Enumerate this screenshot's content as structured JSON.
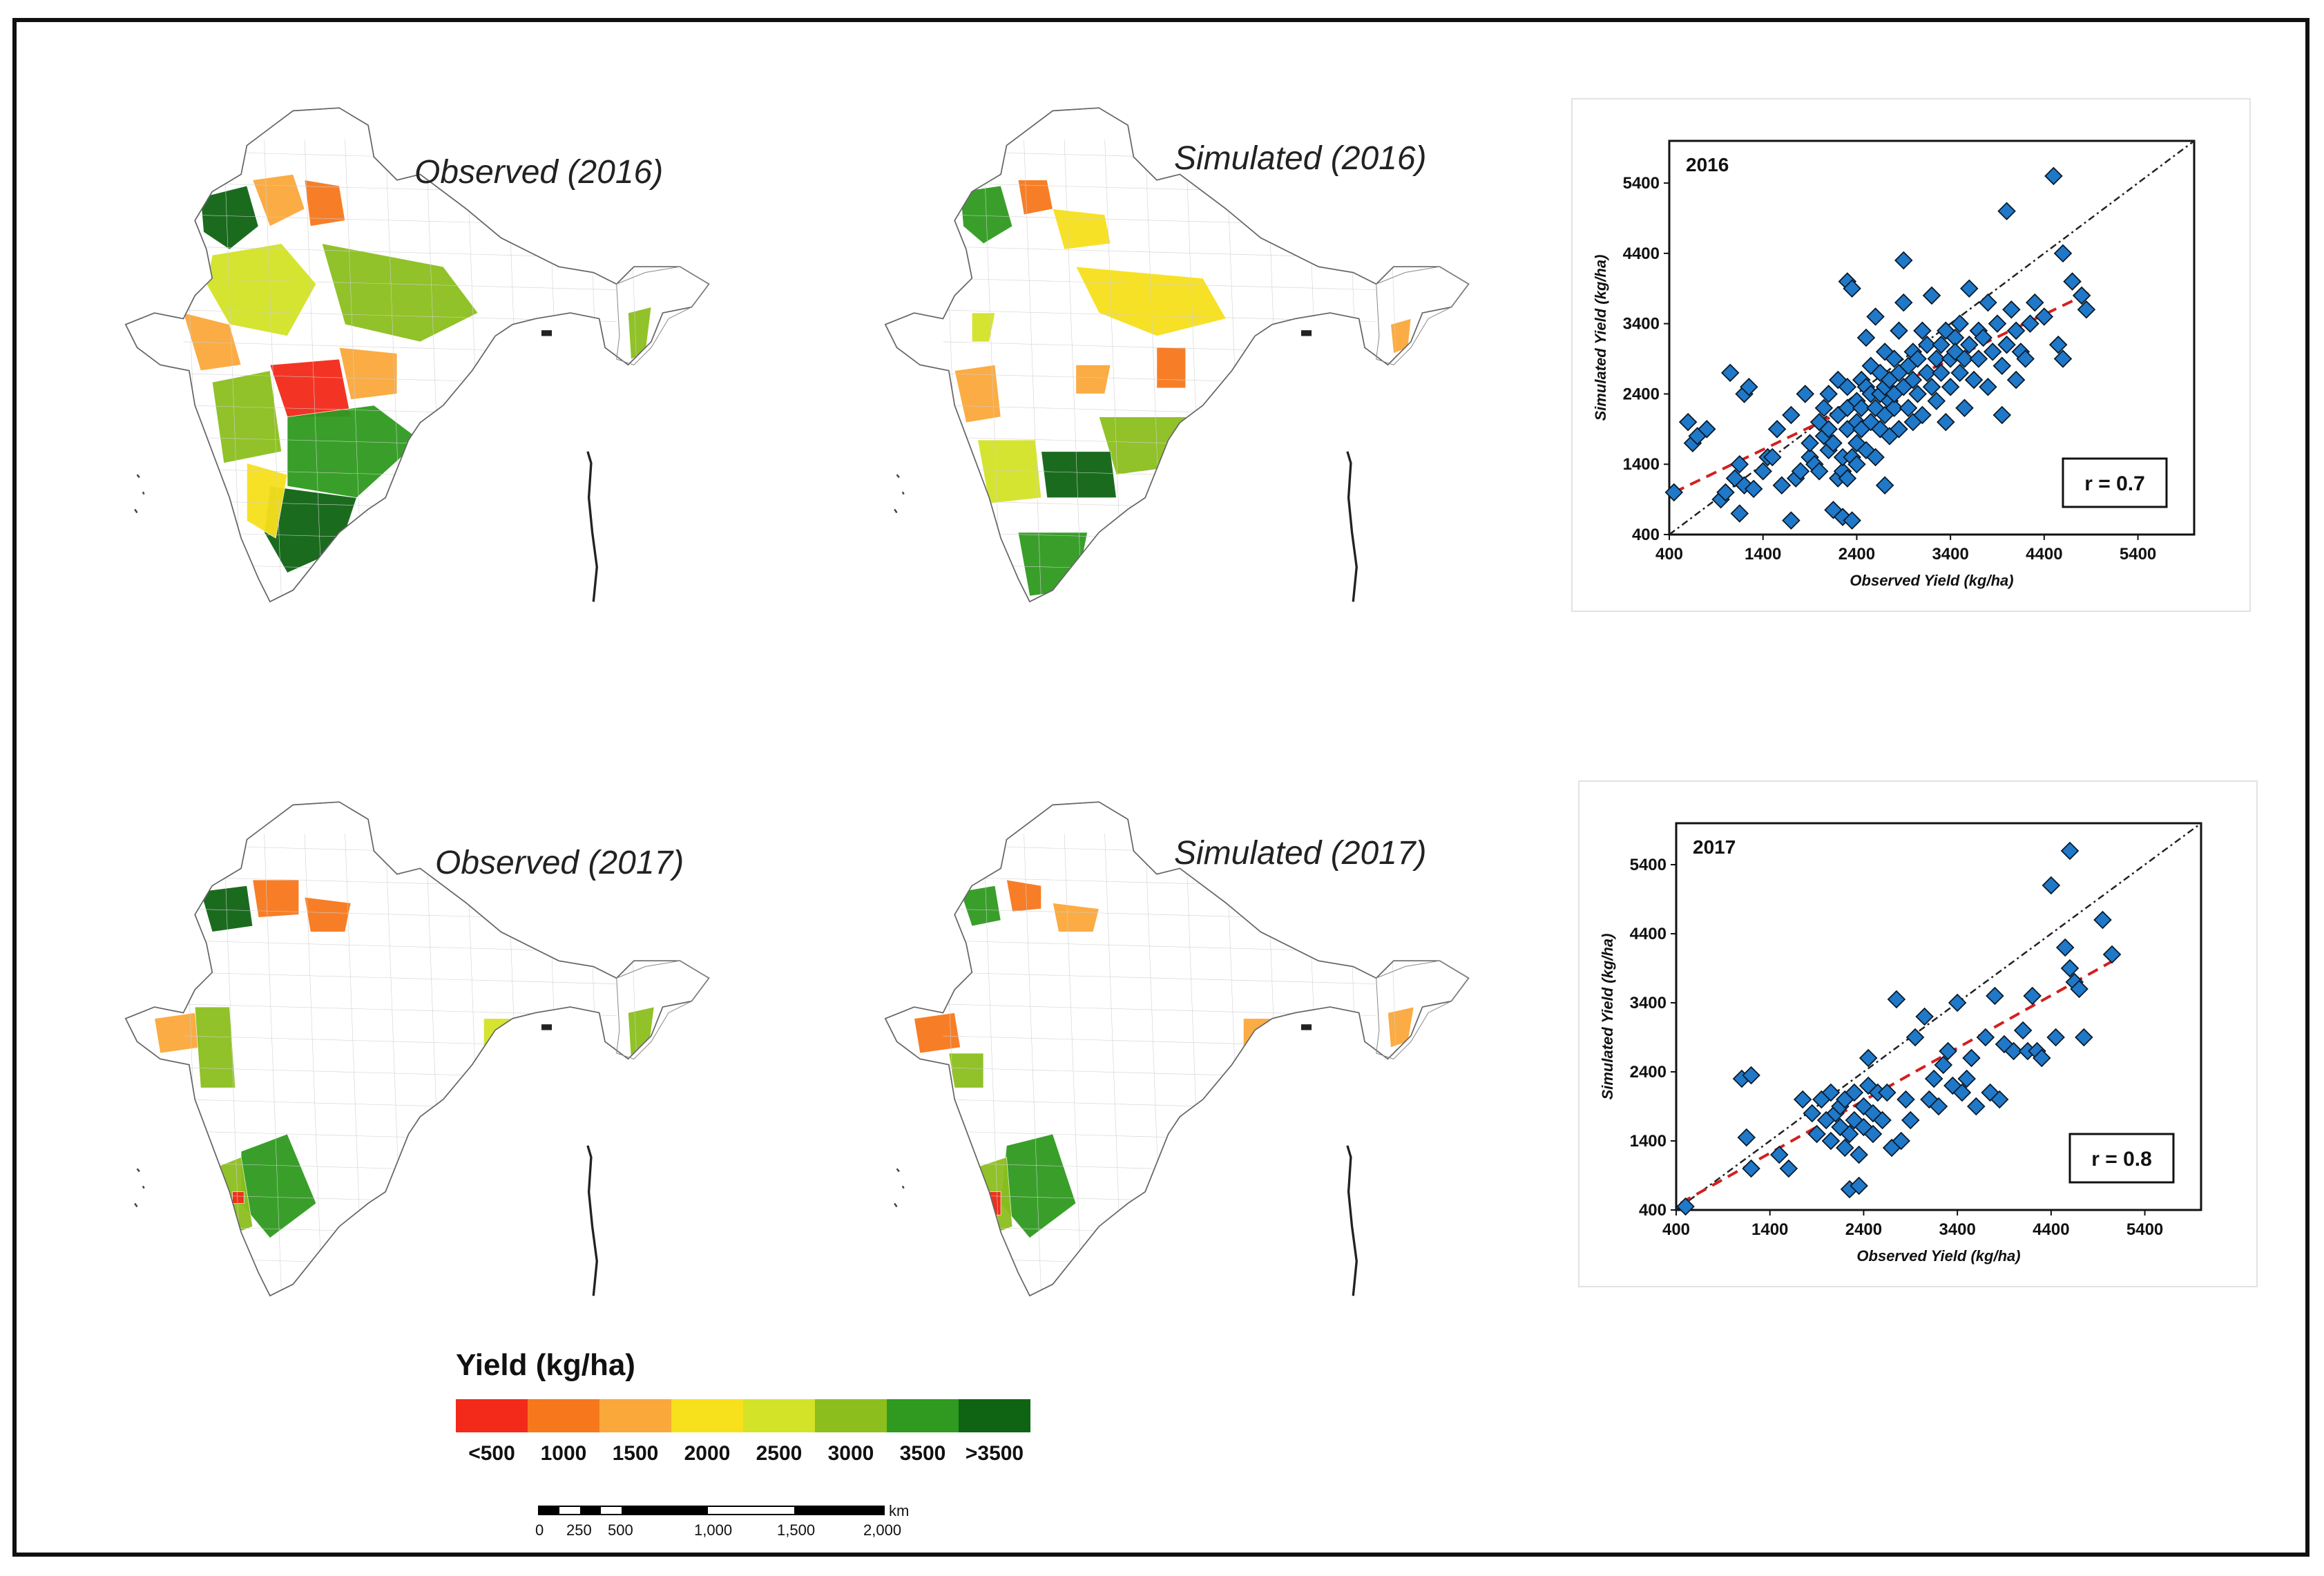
{
  "maps": [
    {
      "title": "Observed (2016)"
    },
    {
      "title": "Simulated (2016)"
    },
    {
      "title": "Observed (2017)"
    },
    {
      "title": "Simulated (2017)"
    }
  ],
  "legend": {
    "title": "Yield (kg/ha)",
    "colors": [
      "#f32a1a",
      "#f7781c",
      "#fba83a",
      "#f7e01c",
      "#d3e327",
      "#8cbf1e",
      "#2f9a1f",
      "#0f6414"
    ],
    "labels": [
      "<500",
      "1000",
      "1500",
      "2000",
      "2500",
      "3000",
      "3500",
      ">3500"
    ]
  },
  "scalebar": {
    "unit": "km",
    "labels": [
      "0",
      "250",
      "500",
      "1,000",
      "1,500",
      "2,000"
    ]
  },
  "chart_data": [
    {
      "type": "scatter",
      "title": "2016",
      "xlabel": "Observed Yield (kg/ha)",
      "ylabel": "Simulated Yield (kg/ha)",
      "xlim": [
        400,
        6000
      ],
      "ylim": [
        400,
        6000
      ],
      "xticks": [
        400,
        1400,
        2400,
        3400,
        4400,
        5400
      ],
      "yticks": [
        400,
        1400,
        2400,
        3400,
        4400,
        5400
      ],
      "annotation": "r = 0.7",
      "marker_color": "#1f78c8",
      "regression_color": "#d32020",
      "regression_line": [
        [
          450,
          1000
        ],
        [
          4900,
          3850
        ]
      ],
      "points": [
        [
          450,
          1000
        ],
        [
          600,
          2000
        ],
        [
          650,
          1700
        ],
        [
          700,
          1800
        ],
        [
          800,
          1900
        ],
        [
          950,
          900
        ],
        [
          1000,
          1000
        ],
        [
          1050,
          2700
        ],
        [
          1100,
          1200
        ],
        [
          1150,
          1400
        ],
        [
          1150,
          700
        ],
        [
          1200,
          1100
        ],
        [
          1200,
          2400
        ],
        [
          1250,
          2500
        ],
        [
          1300,
          1050
        ],
        [
          1400,
          1300
        ],
        [
          1450,
          1500
        ],
        [
          1500,
          1500
        ],
        [
          1550,
          1900
        ],
        [
          1600,
          1100
        ],
        [
          1700,
          2100
        ],
        [
          1700,
          600
        ],
        [
          1750,
          1200
        ],
        [
          1800,
          1300
        ],
        [
          1850,
          2400
        ],
        [
          1900,
          1500
        ],
        [
          1900,
          1700
        ],
        [
          1950,
          1400
        ],
        [
          2000,
          1300
        ],
        [
          2000,
          2000
        ],
        [
          2050,
          1800
        ],
        [
          2050,
          2200
        ],
        [
          2100,
          1600
        ],
        [
          2100,
          1900
        ],
        [
          2100,
          2400
        ],
        [
          2150,
          750
        ],
        [
          2150,
          1700
        ],
        [
          2200,
          1200
        ],
        [
          2200,
          2100
        ],
        [
          2200,
          2600
        ],
        [
          2250,
          650
        ],
        [
          2250,
          1300
        ],
        [
          2250,
          1500
        ],
        [
          2300,
          1200
        ],
        [
          2300,
          1900
        ],
        [
          2300,
          2200
        ],
        [
          2300,
          2500
        ],
        [
          2300,
          4000
        ],
        [
          2350,
          1500
        ],
        [
          2350,
          3900
        ],
        [
          2350,
          600
        ],
        [
          2400,
          2000
        ],
        [
          2400,
          1400
        ],
        [
          2400,
          1700
        ],
        [
          2400,
          2300
        ],
        [
          2450,
          2200
        ],
        [
          2450,
          2600
        ],
        [
          2450,
          1900
        ],
        [
          2500,
          1600
        ],
        [
          2500,
          2500
        ],
        [
          2500,
          3200
        ],
        [
          2550,
          2400
        ],
        [
          2550,
          2000
        ],
        [
          2550,
          2800
        ],
        [
          2600,
          1500
        ],
        [
          2600,
          2200
        ],
        [
          2600,
          3500
        ],
        [
          2650,
          2400
        ],
        [
          2650,
          1900
        ],
        [
          2650,
          2700
        ],
        [
          2700,
          2100
        ],
        [
          2700,
          2500
        ],
        [
          2700,
          3000
        ],
        [
          2700,
          1100
        ],
        [
          2750,
          2300
        ],
        [
          2750,
          2600
        ],
        [
          2750,
          1800
        ],
        [
          2800,
          2200
        ],
        [
          2800,
          2400
        ],
        [
          2800,
          2900
        ],
        [
          2850,
          1900
        ],
        [
          2850,
          2700
        ],
        [
          2850,
          3300
        ],
        [
          2900,
          2500
        ],
        [
          2900,
          3700
        ],
        [
          2900,
          4300
        ],
        [
          2950,
          2200
        ],
        [
          2950,
          2800
        ],
        [
          3000,
          2000
        ],
        [
          3000,
          2600
        ],
        [
          3000,
          3000
        ],
        [
          3050,
          2400
        ],
        [
          3050,
          2900
        ],
        [
          3100,
          3300
        ],
        [
          3100,
          2100
        ],
        [
          3150,
          2700
        ],
        [
          3150,
          3100
        ],
        [
          3200,
          2500
        ],
        [
          3200,
          3800
        ],
        [
          3250,
          2900
        ],
        [
          3250,
          2300
        ],
        [
          3300,
          3100
        ],
        [
          3300,
          2700
        ],
        [
          3350,
          3300
        ],
        [
          3350,
          2000
        ],
        [
          3400,
          2900
        ],
        [
          3400,
          2500
        ],
        [
          3450,
          3200
        ],
        [
          3450,
          3000
        ],
        [
          3500,
          2700
        ],
        [
          3500,
          3400
        ],
        [
          3550,
          2200
        ],
        [
          3550,
          2900
        ],
        [
          3600,
          3100
        ],
        [
          3600,
          3900
        ],
        [
          3650,
          2600
        ],
        [
          3700,
          3300
        ],
        [
          3700,
          2900
        ],
        [
          3750,
          3200
        ],
        [
          3800,
          2500
        ],
        [
          3800,
          3700
        ],
        [
          3850,
          3000
        ],
        [
          3900,
          3400
        ],
        [
          3950,
          2800
        ],
        [
          3950,
          2100
        ],
        [
          4000,
          3100
        ],
        [
          4000,
          5000
        ],
        [
          4050,
          3600
        ],
        [
          4100,
          2600
        ],
        [
          4100,
          3300
        ],
        [
          4150,
          3000
        ],
        [
          4200,
          2900
        ],
        [
          4250,
          3400
        ],
        [
          4300,
          3700
        ],
        [
          4400,
          3500
        ],
        [
          4500,
          5500
        ],
        [
          4550,
          3100
        ],
        [
          4600,
          2900
        ],
        [
          4600,
          4400
        ],
        [
          4700,
          4000
        ],
        [
          4800,
          3800
        ],
        [
          4850,
          3600
        ]
      ]
    },
    {
      "type": "scatter",
      "title": "2017",
      "xlabel": "Observed Yield (kg/ha)",
      "ylabel": "Simulated Yield (kg/ha)",
      "xlim": [
        400,
        6000
      ],
      "ylim": [
        400,
        6000
      ],
      "xticks": [
        400,
        1400,
        2400,
        3400,
        4400,
        5400
      ],
      "yticks": [
        400,
        1400,
        2400,
        3400,
        4400,
        5400
      ],
      "annotation": "r = 0.8",
      "marker_color": "#1f78c8",
      "regression_color": "#d32020",
      "regression_line": [
        [
          450,
          500
        ],
        [
          5050,
          4000
        ]
      ],
      "points": [
        [
          500,
          450
        ],
        [
          1100,
          2300
        ],
        [
          1150,
          1450
        ],
        [
          1200,
          2350
        ],
        [
          1200,
          1000
        ],
        [
          1500,
          1200
        ],
        [
          1600,
          1000
        ],
        [
          1750,
          2000
        ],
        [
          1850,
          1800
        ],
        [
          1900,
          1500
        ],
        [
          1950,
          2000
        ],
        [
          2000,
          1700
        ],
        [
          2050,
          1400
        ],
        [
          2050,
          2100
        ],
        [
          2100,
          1800
        ],
        [
          2150,
          1600
        ],
        [
          2150,
          1900
        ],
        [
          2200,
          1300
        ],
        [
          2200,
          2000
        ],
        [
          2250,
          1500
        ],
        [
          2250,
          700
        ],
        [
          2300,
          1700
        ],
        [
          2300,
          2100
        ],
        [
          2350,
          1200
        ],
        [
          2350,
          750
        ],
        [
          2400,
          1600
        ],
        [
          2400,
          1900
        ],
        [
          2450,
          2600
        ],
        [
          2450,
          2200
        ],
        [
          2500,
          1500
        ],
        [
          2500,
          1800
        ],
        [
          2550,
          2100
        ],
        [
          2600,
          1700
        ],
        [
          2650,
          2100
        ],
        [
          2700,
          1300
        ],
        [
          2750,
          3450
        ],
        [
          2800,
          1400
        ],
        [
          2850,
          2000
        ],
        [
          2900,
          1700
        ],
        [
          2950,
          2900
        ],
        [
          3050,
          3200
        ],
        [
          3100,
          2000
        ],
        [
          3150,
          2300
        ],
        [
          3200,
          1900
        ],
        [
          3250,
          2500
        ],
        [
          3300,
          2700
        ],
        [
          3350,
          2200
        ],
        [
          3400,
          3400
        ],
        [
          3450,
          2100
        ],
        [
          3500,
          2300
        ],
        [
          3550,
          2600
        ],
        [
          3600,
          1900
        ],
        [
          3700,
          2900
        ],
        [
          3750,
          2100
        ],
        [
          3800,
          3500
        ],
        [
          3850,
          2000
        ],
        [
          3900,
          2800
        ],
        [
          4000,
          2700
        ],
        [
          4100,
          3000
        ],
        [
          4150,
          2700
        ],
        [
          4200,
          3500
        ],
        [
          4250,
          2700
        ],
        [
          4300,
          2600
        ],
        [
          4400,
          5100
        ],
        [
          4450,
          2900
        ],
        [
          4550,
          4200
        ],
        [
          4600,
          5600
        ],
        [
          4600,
          3900
        ],
        [
          4650,
          3700
        ],
        [
          4700,
          3600
        ],
        [
          4750,
          2900
        ],
        [
          4950,
          4600
        ],
        [
          5050,
          4100
        ]
      ]
    }
  ]
}
